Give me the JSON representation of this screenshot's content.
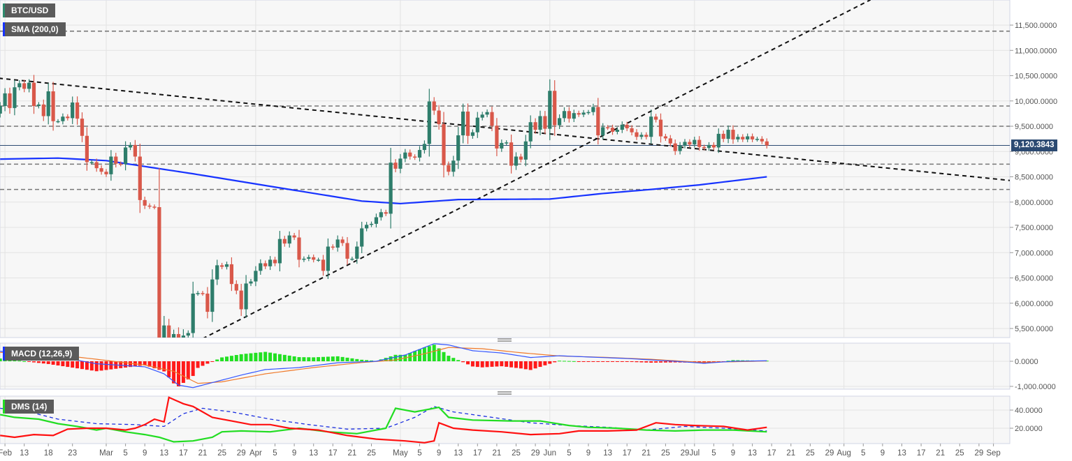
{
  "symbol_label": "BTC/USD",
  "indicators": {
    "sma": "SMA (200,0)",
    "macd": "MACD (12,26,9)",
    "dms": "DMS (14)"
  },
  "last_price": "9,120.3843",
  "colors": {
    "up": "#2e7d6b",
    "down": "#d9584a",
    "sma": "#1733ff",
    "price_tag": "#2c4a72",
    "macd": "#3355ff",
    "signal": "#f07a2a",
    "hist_up": "#22e022",
    "hist_down": "#ff1a1a",
    "di_plus": "#22dd22",
    "di_minus": "#ff1010",
    "adx": "#1a2ee0"
  },
  "chart_data": [
    {
      "type": "candlestick",
      "title": "BTC/USD",
      "first_date": "Feb 8",
      "ylim": [
        5300,
        11800
      ],
      "yticks": [
        5500,
        6000,
        6500,
        7000,
        7500,
        8000,
        8500,
        9000,
        9500,
        10000,
        10500,
        11000,
        11500
      ],
      "ytick_labels": [
        "5,500.0000",
        "6,000.0000",
        "6,500.0000",
        "7,000.0000",
        "7,500.0000",
        "8,000.0000",
        "8,500.0000",
        "9,000.0000",
        "9,500.0000",
        "10,000.0000",
        "10,500.0000",
        "11,000.0000",
        "11,500.0000"
      ],
      "close": [
        9900,
        10150,
        9860,
        10270,
        10350,
        10240,
        10360,
        9900,
        9930,
        9700,
        10190,
        9600,
        9600,
        9690,
        9660,
        9970,
        9650,
        9310,
        8790,
        8790,
        8670,
        8600,
        8550,
        8900,
        8760,
        8750,
        9080,
        9130,
        8900,
        8040,
        7930,
        7910,
        7900,
        4970,
        5560,
        5200,
        5390,
        5020,
        5360,
        5410,
        6190,
        6200,
        6190,
        5830,
        6470,
        6750,
        6720,
        6770,
        6380,
        6250,
        5880,
        6390,
        6430,
        6640,
        6790,
        6730,
        6860,
        6790,
        7270,
        7180,
        7340,
        7300,
        6860,
        6880,
        6910,
        6860,
        6860,
        6640,
        7120,
        7100,
        7260,
        7190,
        6880,
        6880,
        7120,
        7480,
        7550,
        7570,
        7700,
        7800,
        7770,
        8780,
        8660,
        8860,
        8980,
        8900,
        8880,
        9030,
        9150,
        9990,
        9810,
        9540,
        8730,
        8600,
        8820,
        9320,
        9790,
        9310,
        9380,
        9670,
        9730,
        9780,
        9510,
        9060,
        9170,
        9180,
        8720,
        8900,
        8840,
        9200,
        9580,
        9430,
        9700,
        9450,
        10200,
        9520,
        9660,
        9800,
        9650,
        9760,
        9730,
        9770,
        9780,
        9880,
        9320,
        9480,
        9470,
        9390,
        9430,
        9530,
        9460,
        9380,
        9290,
        9330,
        9290,
        9690,
        9630,
        9300,
        9260,
        9160,
        9010,
        9120,
        9190,
        9140,
        9230,
        9090,
        9070,
        9130,
        9080,
        9350,
        9250,
        9430,
        9240,
        9290,
        9240,
        9300,
        9240,
        9250,
        9200,
        9120
      ],
      "first_open": 9750,
      "sma_200": [
        [
          0,
          8850
        ],
        [
          12,
          8870
        ],
        [
          22,
          8820
        ],
        [
          40,
          8560
        ],
        [
          60,
          8250
        ],
        [
          75,
          8020
        ],
        [
          83,
          7970
        ],
        [
          95,
          8050
        ],
        [
          114,
          8060
        ],
        [
          125,
          8170
        ],
        [
          135,
          8250
        ],
        [
          145,
          8340
        ],
        [
          159,
          8500
        ]
      ],
      "horizontal_levels": [
        11380,
        9900,
        9500,
        8750,
        8250
      ],
      "trend_lines": [
        {
          "name": "descending",
          "from": [
            -0.3,
            10450
          ],
          "to": [
            222.7,
            8300
          ]
        },
        {
          "name": "ascending",
          "from": [
            42,
            5300
          ],
          "to": [
            180.5,
            12000
          ]
        }
      ],
      "xticks": [
        [
          1,
          "Feb"
        ],
        [
          5,
          "13"
        ],
        [
          10,
          "18"
        ],
        [
          15,
          "23"
        ],
        [
          22,
          "Mar"
        ],
        [
          26,
          "5"
        ],
        [
          30,
          "9"
        ],
        [
          34,
          "13"
        ],
        [
          38,
          "17"
        ],
        [
          42,
          "21"
        ],
        [
          46,
          "25"
        ],
        [
          50,
          "29"
        ],
        [
          53,
          "Apr"
        ],
        [
          57,
          "5"
        ],
        [
          61,
          "9"
        ],
        [
          65,
          "13"
        ],
        [
          69,
          "17"
        ],
        [
          73,
          "21"
        ],
        [
          77,
          "25"
        ],
        [
          83,
          "May"
        ],
        [
          87,
          "5"
        ],
        [
          91,
          "9"
        ],
        [
          95,
          "13"
        ],
        [
          99,
          "17"
        ],
        [
          103,
          "21"
        ],
        [
          107,
          "25"
        ],
        [
          111,
          "29"
        ],
        [
          114,
          "Jun"
        ],
        [
          118,
          "5"
        ],
        [
          122,
          "9"
        ],
        [
          126,
          "13"
        ],
        [
          130,
          "17"
        ],
        [
          134,
          "21"
        ],
        [
          138,
          "25"
        ],
        [
          142,
          "29"
        ],
        [
          144,
          "Jul"
        ],
        [
          148,
          "5"
        ],
        [
          152,
          "9"
        ],
        [
          156,
          "13"
        ],
        [
          160,
          "17"
        ],
        [
          164,
          "21"
        ],
        [
          168,
          "25"
        ],
        [
          172,
          "29"
        ],
        [
          175,
          "Aug"
        ],
        [
          179,
          "5"
        ],
        [
          183,
          "9"
        ],
        [
          187,
          "13"
        ],
        [
          191,
          "17"
        ],
        [
          195,
          "21"
        ],
        [
          199,
          "25"
        ],
        [
          203,
          "29"
        ],
        [
          206,
          "Sep"
        ]
      ]
    },
    {
      "type": "line",
      "title": "MACD (12,26,9)",
      "yticks": [
        0,
        -1000
      ],
      "ytick_labels": [
        "0.0000",
        "-1,000.0000"
      ],
      "macd": [
        [
          0,
          400
        ],
        [
          10,
          250
        ],
        [
          20,
          -100
        ],
        [
          30,
          -220
        ],
        [
          34,
          -500
        ],
        [
          37,
          -950
        ],
        [
          40,
          -1050
        ],
        [
          44,
          -850
        ],
        [
          50,
          -550
        ],
        [
          55,
          -330
        ],
        [
          62,
          -250
        ],
        [
          70,
          -60
        ],
        [
          78,
          0
        ],
        [
          84,
          250
        ],
        [
          90,
          700
        ],
        [
          93,
          650
        ],
        [
          98,
          420
        ],
        [
          104,
          330
        ],
        [
          110,
          150
        ],
        [
          116,
          220
        ],
        [
          122,
          170
        ],
        [
          130,
          110
        ],
        [
          140,
          0
        ],
        [
          146,
          -80
        ],
        [
          152,
          0
        ],
        [
          159,
          20
        ]
      ],
      "signal": [
        [
          0,
          350
        ],
        [
          10,
          300
        ],
        [
          20,
          80
        ],
        [
          30,
          -150
        ],
        [
          36,
          -400
        ],
        [
          41,
          -880
        ],
        [
          46,
          -820
        ],
        [
          55,
          -500
        ],
        [
          65,
          -250
        ],
        [
          75,
          -50
        ],
        [
          82,
          50
        ],
        [
          88,
          300
        ],
        [
          93,
          550
        ],
        [
          100,
          500
        ],
        [
          108,
          340
        ],
        [
          116,
          210
        ],
        [
          125,
          160
        ],
        [
          135,
          80
        ],
        [
          145,
          -40
        ],
        [
          152,
          -20
        ],
        [
          159,
          10
        ]
      ]
    },
    {
      "type": "line",
      "title": "DMS (14)",
      "yticks": [
        40,
        20
      ],
      "ytick_labels": [
        "40.0000",
        "20.0000"
      ],
      "di_plus": [
        [
          0,
          35
        ],
        [
          3,
          32
        ],
        [
          8,
          30
        ],
        [
          12,
          25
        ],
        [
          16,
          22
        ],
        [
          20,
          18
        ],
        [
          22,
          20
        ],
        [
          26,
          16
        ],
        [
          30,
          13
        ],
        [
          33,
          10
        ],
        [
          36,
          5
        ],
        [
          40,
          6
        ],
        [
          44,
          10
        ],
        [
          46,
          16
        ],
        [
          50,
          17
        ],
        [
          56,
          16
        ],
        [
          62,
          20
        ],
        [
          68,
          16
        ],
        [
          74,
          14
        ],
        [
          80,
          20
        ],
        [
          82,
          42
        ],
        [
          86,
          38
        ],
        [
          91,
          43
        ],
        [
          93,
          32
        ],
        [
          98,
          29
        ],
        [
          106,
          28
        ],
        [
          112,
          28
        ],
        [
          118,
          23
        ],
        [
          122,
          21
        ],
        [
          128,
          20
        ],
        [
          134,
          18
        ],
        [
          140,
          17
        ],
        [
          146,
          18
        ],
        [
          152,
          18
        ],
        [
          159,
          16
        ]
      ],
      "di_minus": [
        [
          0,
          12
        ],
        [
          3,
          10
        ],
        [
          7,
          13
        ],
        [
          11,
          12
        ],
        [
          14,
          19
        ],
        [
          18,
          20
        ],
        [
          22,
          20
        ],
        [
          26,
          18
        ],
        [
          28,
          20
        ],
        [
          30,
          24
        ],
        [
          32,
          30
        ],
        [
          34,
          27
        ],
        [
          35,
          54
        ],
        [
          38,
          47
        ],
        [
          40,
          44
        ],
        [
          44,
          32
        ],
        [
          48,
          28
        ],
        [
          52,
          24
        ],
        [
          56,
          24
        ],
        [
          60,
          20
        ],
        [
          66,
          18
        ],
        [
          72,
          12
        ],
        [
          78,
          8
        ],
        [
          84,
          6
        ],
        [
          88,
          4
        ],
        [
          90,
          6
        ],
        [
          91,
          26
        ],
        [
          94,
          20
        ],
        [
          98,
          18
        ],
        [
          104,
          16
        ],
        [
          110,
          13
        ],
        [
          116,
          14
        ],
        [
          120,
          17
        ],
        [
          126,
          17
        ],
        [
          132,
          18
        ],
        [
          136,
          26
        ],
        [
          140,
          24
        ],
        [
          144,
          23
        ],
        [
          150,
          22
        ],
        [
          155,
          18
        ],
        [
          159,
          21
        ]
      ],
      "adx": [
        [
          0,
          42
        ],
        [
          6,
          38
        ],
        [
          12,
          30
        ],
        [
          20,
          25
        ],
        [
          28,
          24
        ],
        [
          34,
          22
        ],
        [
          38,
          36
        ],
        [
          42,
          42
        ],
        [
          48,
          38
        ],
        [
          56,
          30
        ],
        [
          64,
          24
        ],
        [
          72,
          19
        ],
        [
          80,
          20
        ],
        [
          86,
          32
        ],
        [
          90,
          44
        ],
        [
          94,
          38
        ],
        [
          102,
          32
        ],
        [
          110,
          26
        ],
        [
          118,
          23
        ],
        [
          126,
          21
        ],
        [
          134,
          18
        ],
        [
          142,
          22
        ],
        [
          150,
          20
        ],
        [
          159,
          17
        ]
      ]
    }
  ]
}
